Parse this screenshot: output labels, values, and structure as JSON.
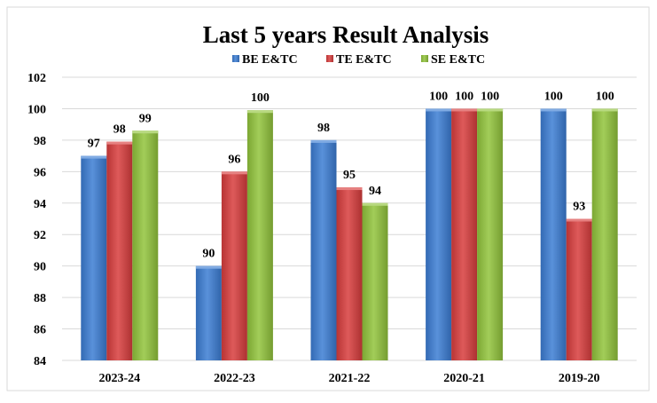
{
  "chart_data": {
    "type": "bar",
    "title": "Last 5 years Result Analysis",
    "xlabel": "",
    "ylabel": "",
    "ylim": [
      84,
      102
    ],
    "yticks": [
      "84",
      "86",
      "88",
      "90",
      "92",
      "94",
      "96",
      "98",
      "100",
      "102"
    ],
    "grid": true,
    "legend_position": "top",
    "categories": [
      "2023-24",
      "2022-23",
      "2021-22",
      "2020-21",
      "2019-20"
    ],
    "series": [
      {
        "name": "BE E&TC",
        "color": "#3c7dd4",
        "values": [
          97,
          90,
          98,
          100,
          100
        ],
        "labels": [
          "97",
          "90",
          "98",
          "100",
          "100"
        ]
      },
      {
        "name": "TE E&TC",
        "color": "#d83d3d",
        "values": [
          97.9,
          96,
          95,
          100,
          93
        ],
        "labels": [
          "98",
          "96",
          "95",
          "100",
          "93"
        ]
      },
      {
        "name": "SE E&TC",
        "color": "#92c43c",
        "values": [
          98.6,
          99.9,
          94,
          100,
          100
        ],
        "labels": [
          "99",
          "100",
          "94",
          "100",
          "100"
        ]
      }
    ]
  }
}
